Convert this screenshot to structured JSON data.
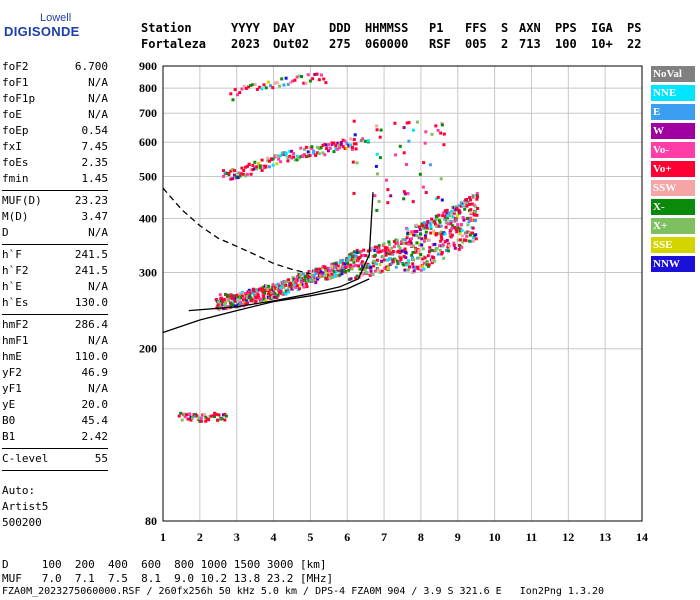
{
  "logo": {
    "top": "Lowell",
    "main": "DIGISONDE"
  },
  "header": {
    "line1": [
      "Station",
      "YYYY",
      "DAY",
      "DDD",
      "HHMMSS",
      "P1",
      "FFS",
      "S",
      "AXN",
      "PPS",
      "IGA",
      "PS"
    ],
    "line2": [
      "Fortaleza",
      "2023",
      "Out02",
      "275",
      "060000",
      "RSF",
      "005",
      "2",
      "713",
      "100",
      "10+",
      "22"
    ]
  },
  "params": [
    {
      "label": "foF2",
      "value": "6.700"
    },
    {
      "label": "foF1",
      "value": "N/A"
    },
    {
      "label": "foF1p",
      "value": "N/A"
    },
    {
      "label": "foE",
      "value": "N/A"
    },
    {
      "label": "foEp",
      "value": "0.54"
    },
    {
      "label": "fxI",
      "value": "7.45"
    },
    {
      "label": "foEs",
      "value": "2.35"
    },
    {
      "label": "fmin",
      "value": "1.45"
    },
    {
      "label": "MUF(D)",
      "value": "23.23"
    },
    {
      "label": "M(D)",
      "value": "3.47"
    },
    {
      "label": "D",
      "value": "N/A"
    },
    {
      "label": "h`F",
      "value": "241.5"
    },
    {
      "label": "h`F2",
      "value": "241.5"
    },
    {
      "label": "h`E",
      "value": "N/A"
    },
    {
      "label": "h`Es",
      "value": "130.0"
    },
    {
      "label": "hmF2",
      "value": "286.4"
    },
    {
      "label": "hmF1",
      "value": "N/A"
    },
    {
      "label": "hmE",
      "value": "110.0"
    },
    {
      "label": "yF2",
      "value": "46.9"
    },
    {
      "label": "yF1",
      "value": "N/A"
    },
    {
      "label": "yE",
      "value": "20.0"
    },
    {
      "label": "B0",
      "value": "45.4"
    },
    {
      "label": "B1",
      "value": "2.42"
    },
    {
      "label": "C-level",
      "value": "55"
    }
  ],
  "auto": {
    "line1": "Auto:",
    "line2": "Artist5",
    "line3": "500200"
  },
  "legend": [
    {
      "label": "NoVal",
      "color": "#808080"
    },
    {
      "label": "NNE",
      "color": "#00e5ff"
    },
    {
      "label": "E",
      "color": "#3a9ff0"
    },
    {
      "label": "W",
      "color": "#a000a0"
    },
    {
      "label": "Vo-",
      "color": "#ff3ca8"
    },
    {
      "label": "Vo+",
      "color": "#ff0033"
    },
    {
      "label": "SSW",
      "color": "#f5a5a5"
    },
    {
      "label": "X-",
      "color": "#0a8a0a"
    },
    {
      "label": "X+",
      "color": "#7ec060"
    },
    {
      "label": "SSE",
      "color": "#d4d400"
    },
    {
      "label": "NNW",
      "color": "#1a10d8"
    }
  ],
  "bottom": {
    "d_row": "D     100  200  400  600  800 1000 1500 3000 [km]",
    "muf_row": "MUF   7.0  7.1  7.5  8.1  9.0 10.2 13.8 23.2 [MHz]",
    "footer": "FZA0M_2023275060000.RSF / 260fx256h 50 kHz 5.0 km / DPS-4 FZA0M 904 / 3.9 S 321.6 E   Ion2Png 1.3.20"
  },
  "chart_data": {
    "type": "scatter",
    "xlim": [
      1,
      14
    ],
    "ylim": [
      80,
      900
    ],
    "x_ticks": [
      "1",
      "2",
      "3",
      "4",
      "5",
      "6",
      "7",
      "8",
      "9",
      "10",
      "11",
      "12",
      "13",
      "14"
    ],
    "y_ticks": [
      "80",
      "200",
      "300",
      "400",
      "500",
      "600",
      "700",
      "800",
      "900"
    ],
    "y_scale": "log",
    "grid": true,
    "traces": [
      {
        "name": "Es",
        "x_range": [
          1.4,
          2.7
        ],
        "height": 140
      },
      {
        "name": "F2 O-trace",
        "points": [
          [
            2.4,
            258
          ],
          [
            3,
            262
          ],
          [
            3.5,
            268
          ],
          [
            4,
            275
          ],
          [
            4.5,
            285
          ],
          [
            5,
            295
          ],
          [
            5.5,
            305
          ],
          [
            6,
            315
          ],
          [
            6.5,
            320
          ],
          [
            7,
            330
          ],
          [
            7.5,
            340
          ],
          [
            8,
            350
          ],
          [
            8.5,
            370
          ],
          [
            9,
            390
          ],
          [
            9.4,
            410
          ]
        ]
      },
      {
        "name": "F2 2-hop",
        "points": [
          [
            2.6,
            505
          ],
          [
            3,
            515
          ],
          [
            3.5,
            530
          ],
          [
            4,
            550
          ],
          [
            4.5,
            565
          ],
          [
            5,
            575
          ],
          [
            5.5,
            585
          ],
          [
            6,
            600
          ]
        ]
      },
      {
        "name": "F2 3-hop",
        "points": [
          [
            2.8,
            770
          ],
          [
            3,
            790
          ],
          [
            3.5,
            810
          ],
          [
            4,
            825
          ],
          [
            4.5,
            840
          ],
          [
            5,
            850
          ]
        ]
      }
    ],
    "profile_curves": [
      {
        "name": "profile-solid",
        "points": [
          [
            1.7,
            245
          ],
          [
            3,
            250
          ],
          [
            4,
            258
          ],
          [
            5,
            268
          ],
          [
            5.8,
            278
          ],
          [
            6.3,
            290
          ],
          [
            6.6,
            330
          ],
          [
            6.7,
            460
          ]
        ]
      },
      {
        "name": "profile-solid-2",
        "points": [
          [
            1,
            218
          ],
          [
            2,
            233
          ],
          [
            3,
            245
          ],
          [
            4,
            257
          ],
          [
            5,
            265
          ],
          [
            6,
            275
          ],
          [
            6.6,
            290
          ]
        ]
      },
      {
        "name": "profile-dashed",
        "points": [
          [
            1,
            470
          ],
          [
            1.5,
            420
          ],
          [
            2,
            385
          ],
          [
            2.5,
            360
          ],
          [
            3,
            345
          ],
          [
            3.5,
            330
          ],
          [
            4,
            315
          ],
          [
            4.5,
            305
          ],
          [
            5,
            298
          ]
        ]
      }
    ]
  }
}
